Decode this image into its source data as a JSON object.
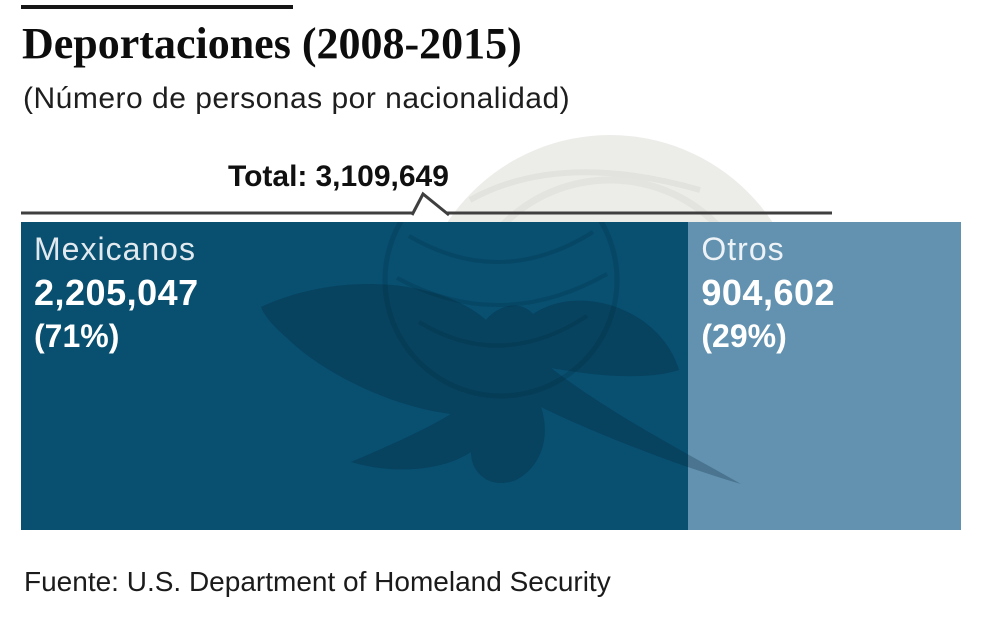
{
  "header": {
    "title": "Deportaciones (2008-2015)",
    "subtitle": "(Número de personas por nacionalidad)"
  },
  "total": {
    "label": "Total:",
    "value": "3,109,649"
  },
  "footer": {
    "source": "Fuente: U.S. Department of Homeland Security"
  },
  "colors": {
    "segment_mexicanos": "#084F70",
    "segment_otros": "#6292B0",
    "annotation_line": "#3f3f3f",
    "text": "#101010"
  },
  "chart_data": {
    "type": "bar",
    "subtype": "horizontal-stacked-100pct",
    "title": "Deportaciones (2008-2015)",
    "subtitle": "(Número de personas por nacionalidad)",
    "total": 3109649,
    "total_label": "Total: 3,109,649",
    "categories": [
      "Mexicanos",
      "Otros"
    ],
    "values": [
      2205047,
      904602
    ],
    "value_labels": [
      "2,205,047",
      "904,602"
    ],
    "percentages": [
      71,
      29
    ],
    "percent_labels": [
      "(71%)",
      "(29%)"
    ],
    "colors": [
      "#084F70",
      "#6292B0"
    ],
    "legend_position": "inside-bar",
    "grid": false,
    "source": "Fuente: U.S. Department of Homeland Security",
    "watermark": "eagle-over-globe-logo"
  }
}
